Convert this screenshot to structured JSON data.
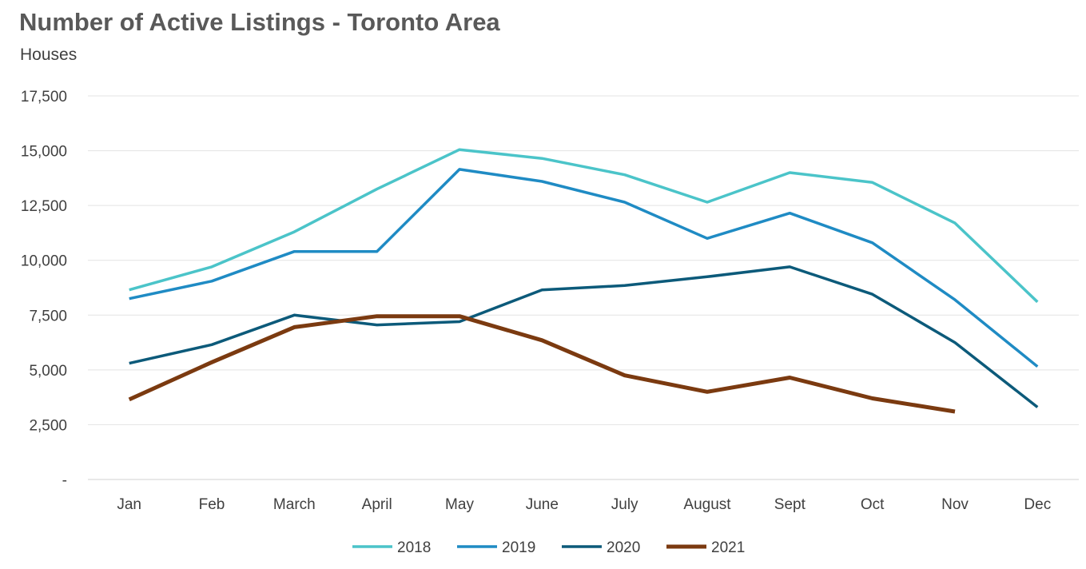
{
  "chart_data": {
    "type": "line",
    "title": "Number of Active Listings - Toronto Area",
    "subtitle": "Houses",
    "xlabel": "",
    "ylabel": "",
    "categories": [
      "Jan",
      "Feb",
      "March",
      "April",
      "May",
      "June",
      "July",
      "August",
      "Sept",
      "Oct",
      "Nov",
      "Dec"
    ],
    "ylim": [
      0,
      17500
    ],
    "yticks": [
      0,
      2500,
      5000,
      7500,
      10000,
      12500,
      15000,
      17500
    ],
    "ytick_labels": [
      "-",
      "2,500",
      "5,000",
      "7,500",
      "10,000",
      "12,500",
      "15,000",
      "17,500"
    ],
    "grid": "horizontal",
    "legend_position": "bottom",
    "series": [
      {
        "name": "2018",
        "color": "#4bc4c9",
        "values": [
          8650,
          9700,
          11300,
          13250,
          15050,
          14650,
          13900,
          12650,
          14000,
          13550,
          11700,
          8100
        ]
      },
      {
        "name": "2019",
        "color": "#1f8bc4",
        "values": [
          8250,
          9050,
          10400,
          10400,
          14150,
          13600,
          12650,
          11000,
          12150,
          10800,
          8200,
          5150
        ]
      },
      {
        "name": "2020",
        "color": "#0c5a7a",
        "values": [
          5300,
          6150,
          7500,
          7050,
          7200,
          8650,
          8850,
          9250,
          9700,
          8450,
          6250,
          3300
        ]
      },
      {
        "name": "2021",
        "color": "#7b3a10",
        "values": [
          3650,
          5350,
          6950,
          7450,
          7450,
          6350,
          4750,
          4000,
          4650,
          3700,
          3100,
          null
        ]
      }
    ]
  }
}
